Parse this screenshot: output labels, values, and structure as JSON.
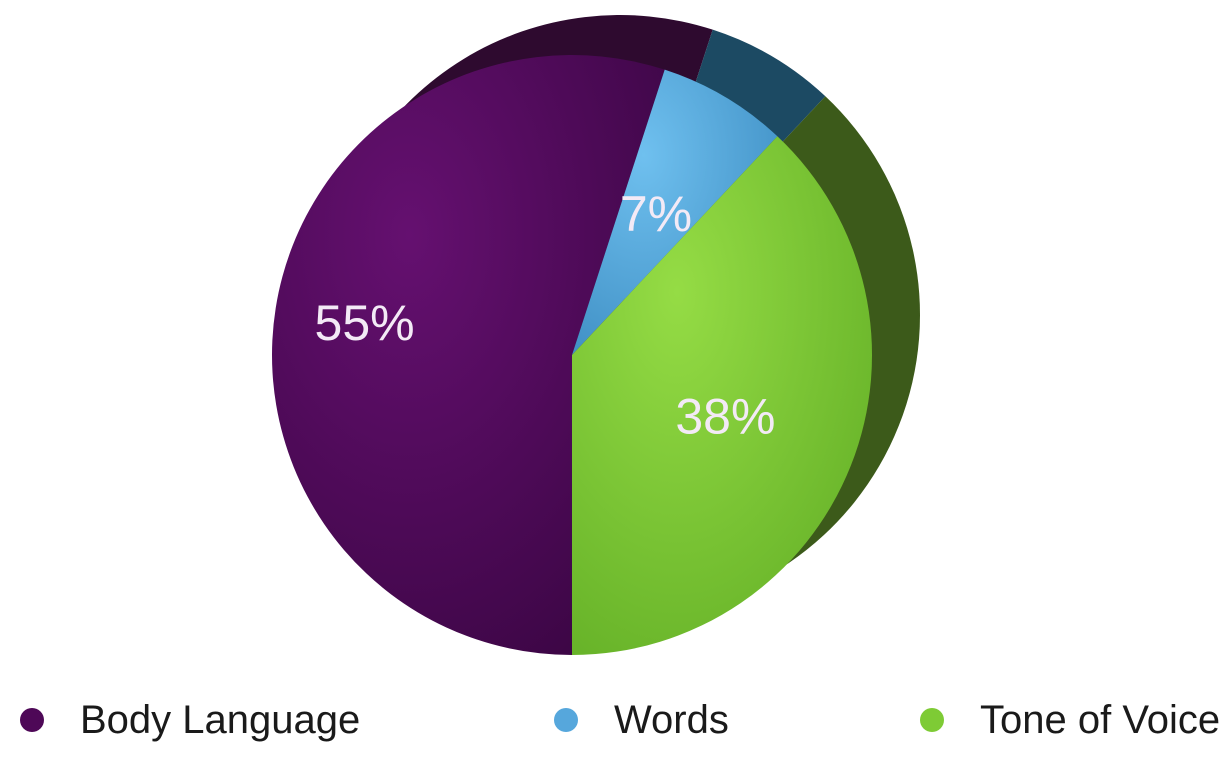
{
  "chart_data": {
    "type": "pie",
    "categories": [
      "Body Language",
      "Words",
      "Tone of Voice"
    ],
    "values": [
      55,
      7,
      38
    ],
    "value_labels": [
      "55%",
      "7%",
      "38%"
    ],
    "colors": [
      "#4e0857",
      "#56a7dc",
      "#7ecb35"
    ],
    "side_colors": [
      "#2e0a2f",
      "#1c4a63",
      "#3c5a1a"
    ],
    "legend": {
      "placement": "bottom",
      "entries": [
        "Body Language",
        "Words",
        "Tone of Voice"
      ]
    },
    "style": "3d-tilted",
    "title": ""
  }
}
